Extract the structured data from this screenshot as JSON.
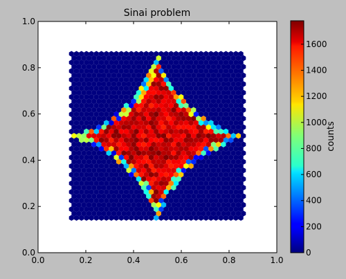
{
  "chart_data": {
    "type": "heatmap",
    "title": "Sinai problem",
    "xlabel": "",
    "ylabel": "",
    "xlim": [
      0.0,
      1.0
    ],
    "ylim": [
      0.0,
      1.0
    ],
    "x_ticks": [
      "0.0",
      "0.2",
      "0.4",
      "0.6",
      "0.8",
      "1.0"
    ],
    "y_ticks": [
      "0.0",
      "0.2",
      "0.4",
      "0.6",
      "0.8",
      "1.0"
    ],
    "grid": false,
    "colormap": "jet",
    "bin_shape": "hexagon",
    "data_extent": [
      0.14,
      0.86,
      0.14,
      0.86
    ],
    "region_shape": "astroid centered at (0.5, 0.5) with half-width 0.36",
    "inside_counts_approx": [
      1500,
      1780
    ],
    "outside_counts": 0,
    "colorbar": {
      "label": "counts",
      "ticks": [
        "0",
        "200",
        "400",
        "600",
        "800",
        "1000",
        "1200",
        "1400",
        "1600"
      ],
      "range": [
        0,
        1780
      ]
    }
  }
}
